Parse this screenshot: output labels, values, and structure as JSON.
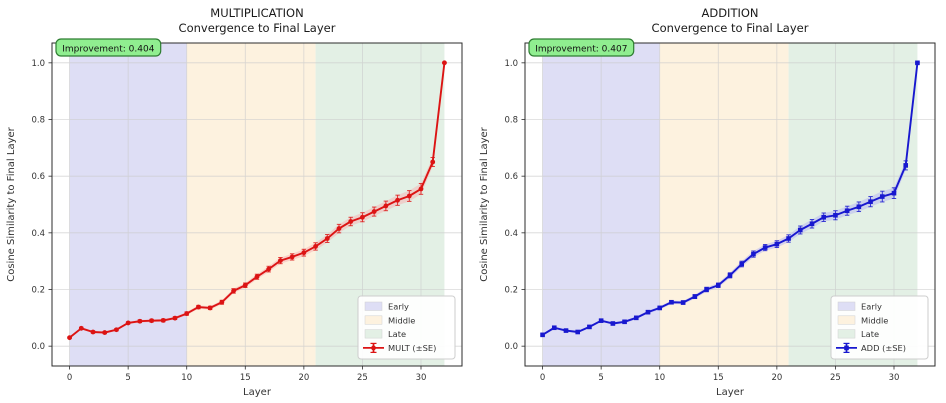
{
  "style": {
    "background": "#ffffff",
    "grid_color": "#cccccc",
    "spine_color": "#2b2b2b",
    "title_color": "#1a1a1a",
    "tick_color": "#333333",
    "badge_bg": "#90ee90",
    "badge_border": "#2e7d32",
    "legend_bg": "#ffffff",
    "legend_border": "#cccccc"
  },
  "chart_data": [
    {
      "type": "line",
      "title": "MULTIPLICATION",
      "subtitle": "Convergence to Final Layer",
      "xlabel": "Layer",
      "ylabel": "Cosine Similarity to Final Layer",
      "annotation": "Improvement: 0.404",
      "xlim": [
        -1.5,
        33.5
      ],
      "ylim": [
        -0.07,
        1.07
      ],
      "xticks": [
        0,
        5,
        10,
        15,
        20,
        25,
        30
      ],
      "yticks": [
        "0.0",
        "0.2",
        "0.4",
        "0.6",
        "0.8",
        "1.0"
      ],
      "grid": true,
      "legend_position": "lower right",
      "regions": [
        {
          "label": "Early",
          "from": 0,
          "to": 10,
          "color": "#dedef5"
        },
        {
          "label": "Middle",
          "from": 10,
          "to": 21,
          "color": "#fdf2df"
        },
        {
          "label": "Late",
          "from": 21,
          "to": 32,
          "color": "#e3f0e5"
        }
      ],
      "series": [
        {
          "name": "MULT (±SE)",
          "color": "#dc1414",
          "band_color": "#f6b6b6",
          "marker": "circle",
          "x": [
            0,
            1,
            2,
            3,
            4,
            5,
            6,
            7,
            8,
            9,
            10,
            11,
            12,
            13,
            14,
            15,
            16,
            17,
            18,
            19,
            20,
            21,
            22,
            23,
            24,
            25,
            26,
            27,
            28,
            29,
            30,
            31,
            32
          ],
          "y": [
            0.03,
            0.063,
            0.05,
            0.048,
            0.058,
            0.082,
            0.088,
            0.09,
            0.091,
            0.099,
            0.115,
            0.138,
            0.135,
            0.155,
            0.195,
            0.215,
            0.245,
            0.272,
            0.302,
            0.315,
            0.33,
            0.352,
            0.38,
            0.415,
            0.44,
            0.455,
            0.475,
            0.495,
            0.515,
            0.53,
            0.555,
            0.65,
            1.0
          ],
          "se": [
            0.003,
            0.004,
            0.004,
            0.004,
            0.004,
            0.004,
            0.005,
            0.005,
            0.005,
            0.005,
            0.006,
            0.006,
            0.006,
            0.007,
            0.008,
            0.008,
            0.009,
            0.01,
            0.011,
            0.011,
            0.012,
            0.013,
            0.014,
            0.015,
            0.015,
            0.016,
            0.016,
            0.017,
            0.018,
            0.019,
            0.019,
            0.016,
            0.001
          ]
        }
      ]
    },
    {
      "type": "line",
      "title": "ADDITION",
      "subtitle": "Convergence to Final Layer",
      "xlabel": "Layer",
      "ylabel": "Cosine Similarity to Final Layer",
      "annotation": "Improvement: 0.407",
      "xlim": [
        -1.5,
        33.5
      ],
      "ylim": [
        -0.07,
        1.07
      ],
      "xticks": [
        0,
        5,
        10,
        15,
        20,
        25,
        30
      ],
      "yticks": [
        "0.0",
        "0.2",
        "0.4",
        "0.6",
        "0.8",
        "1.0"
      ],
      "grid": true,
      "legend_position": "lower right",
      "regions": [
        {
          "label": "Early",
          "from": 0,
          "to": 10,
          "color": "#dedef5"
        },
        {
          "label": "Middle",
          "from": 10,
          "to": 21,
          "color": "#fdf2df"
        },
        {
          "label": "Late",
          "from": 21,
          "to": 32,
          "color": "#e3f0e5"
        }
      ],
      "series": [
        {
          "name": "ADD (±SE)",
          "color": "#1818cf",
          "band_color": "#b9b9f2",
          "marker": "square",
          "x": [
            0,
            1,
            2,
            3,
            4,
            5,
            6,
            7,
            8,
            9,
            10,
            11,
            12,
            13,
            14,
            15,
            16,
            17,
            18,
            19,
            20,
            21,
            22,
            23,
            24,
            25,
            26,
            27,
            28,
            29,
            30,
            31,
            32
          ],
          "y": [
            0.04,
            0.065,
            0.055,
            0.05,
            0.068,
            0.09,
            0.08,
            0.086,
            0.1,
            0.12,
            0.135,
            0.155,
            0.154,
            0.175,
            0.2,
            0.215,
            0.25,
            0.29,
            0.325,
            0.348,
            0.36,
            0.38,
            0.41,
            0.432,
            0.455,
            0.462,
            0.478,
            0.492,
            0.51,
            0.528,
            0.54,
            0.638,
            1.0
          ],
          "se": [
            0.003,
            0.004,
            0.004,
            0.004,
            0.004,
            0.004,
            0.005,
            0.005,
            0.005,
            0.005,
            0.006,
            0.006,
            0.006,
            0.007,
            0.008,
            0.008,
            0.009,
            0.01,
            0.011,
            0.011,
            0.012,
            0.013,
            0.014,
            0.015,
            0.015,
            0.016,
            0.016,
            0.017,
            0.018,
            0.019,
            0.019,
            0.016,
            0.001
          ]
        }
      ]
    }
  ]
}
